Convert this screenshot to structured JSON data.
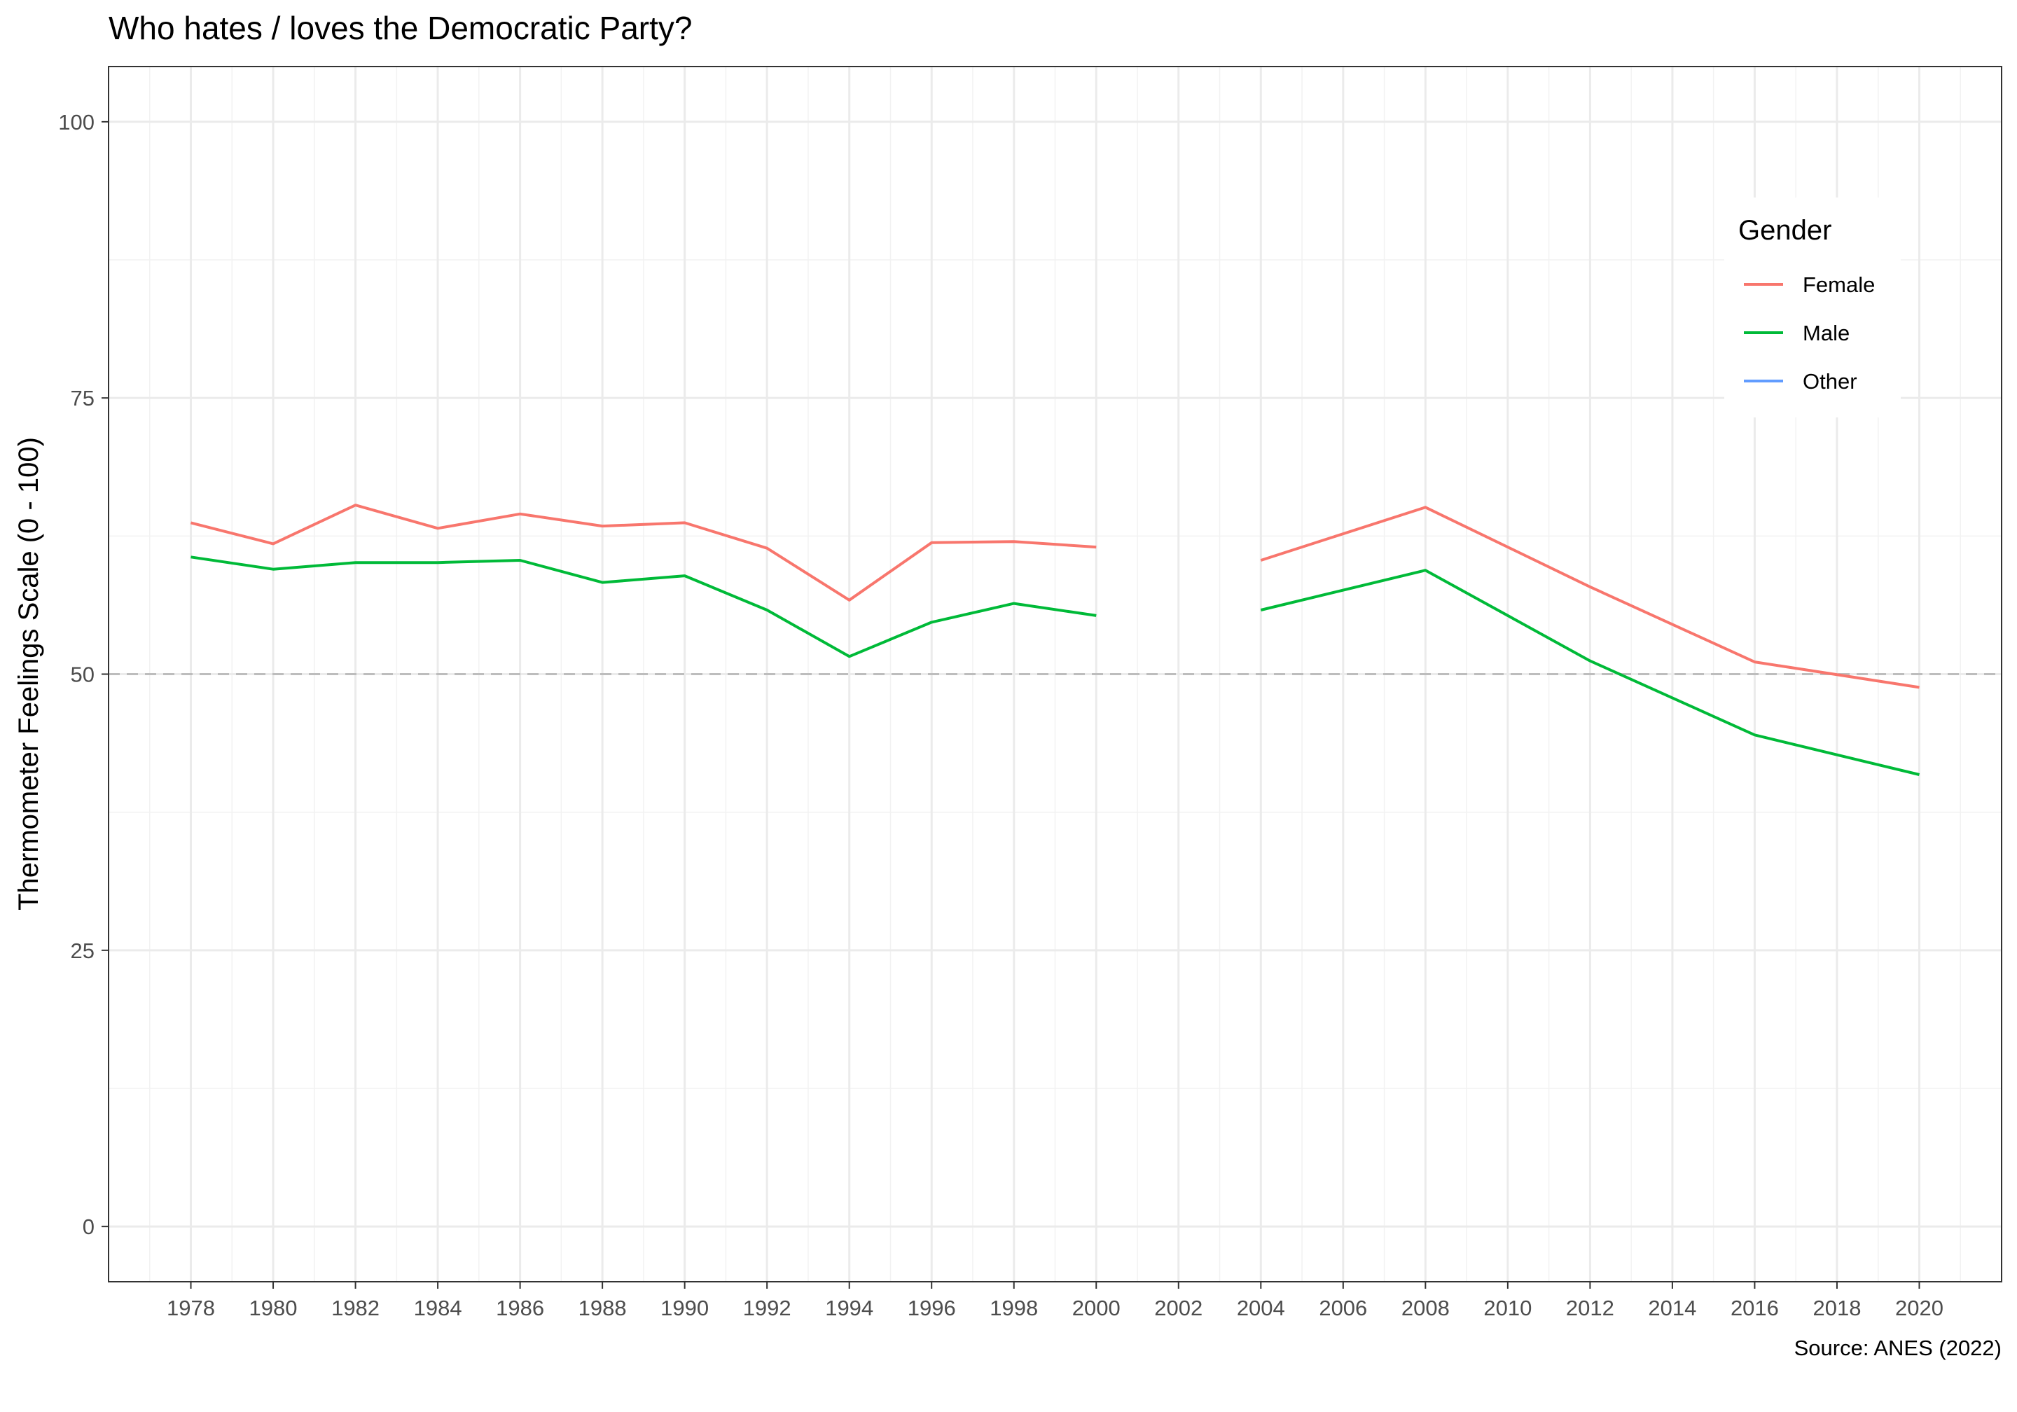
{
  "chart_data": {
    "type": "line",
    "title": "Who hates / loves the Democratic Party?",
    "xlabel": "",
    "ylabel": "Thermometer Feelings Scale (0 - 100)",
    "caption": "Source: ANES (2022)",
    "xlim": [
      1976,
      2022
    ],
    "ylim": [
      -5,
      105
    ],
    "x_ticks": [
      1978,
      1980,
      1982,
      1984,
      1986,
      1988,
      1990,
      1992,
      1994,
      1996,
      1998,
      2000,
      2002,
      2004,
      2006,
      2008,
      2010,
      2012,
      2014,
      2016,
      2018,
      2020
    ],
    "x_tick_labels": [
      "1978",
      "1980",
      "1982",
      "1984",
      "1986",
      "1988",
      "1990",
      "1992",
      "1994",
      "1996",
      "1998",
      "2000",
      "2002",
      "2004",
      "2006",
      "2008",
      "2010",
      "2012",
      "2014",
      "2016",
      "2018",
      "2020"
    ],
    "y_ticks": [
      0,
      25,
      50,
      75,
      100
    ],
    "y_tick_labels": [
      "0",
      "25",
      "50",
      "75",
      "100"
    ],
    "reference_line": {
      "y": 50,
      "style": "dashed",
      "color": "#bdbdbd"
    },
    "grid": true,
    "legend": {
      "title": "Gender",
      "position": "top-right",
      "entries": [
        "Female",
        "Male",
        "Other"
      ]
    },
    "series": [
      {
        "name": "Female",
        "color": "#F8766D",
        "segments": [
          [
            [
              1978,
              63.7
            ],
            [
              1980,
              61.8
            ],
            [
              1982,
              65.3
            ],
            [
              1984,
              63.2
            ],
            [
              1986,
              64.5
            ],
            [
              1988,
              63.4
            ],
            [
              1990,
              63.7
            ],
            [
              1992,
              61.4
            ],
            [
              1994,
              56.7
            ],
            [
              1996,
              61.9
            ],
            [
              1998,
              62.0
            ],
            [
              2000,
              61.5
            ]
          ],
          [
            [
              2004,
              60.3
            ],
            [
              2008,
              65.1
            ],
            [
              2012,
              57.9
            ],
            [
              2016,
              51.1
            ],
            [
              2020,
              48.8
            ]
          ]
        ]
      },
      {
        "name": "Male",
        "color": "#00BA38",
        "segments": [
          [
            [
              1978,
              60.6
            ],
            [
              1980,
              59.5
            ],
            [
              1982,
              60.1
            ],
            [
              1984,
              60.1
            ],
            [
              1986,
              60.3
            ],
            [
              1988,
              58.3
            ],
            [
              1990,
              58.9
            ],
            [
              1992,
              55.8
            ],
            [
              1994,
              51.6
            ],
            [
              1996,
              54.7
            ],
            [
              1998,
              56.4
            ],
            [
              2000,
              55.3
            ]
          ],
          [
            [
              2004,
              55.8
            ],
            [
              2008,
              59.4
            ],
            [
              2012,
              51.2
            ],
            [
              2016,
              44.5
            ],
            [
              2020,
              40.9
            ]
          ]
        ]
      },
      {
        "name": "Other",
        "color": "#619CFF",
        "segments": []
      }
    ]
  }
}
